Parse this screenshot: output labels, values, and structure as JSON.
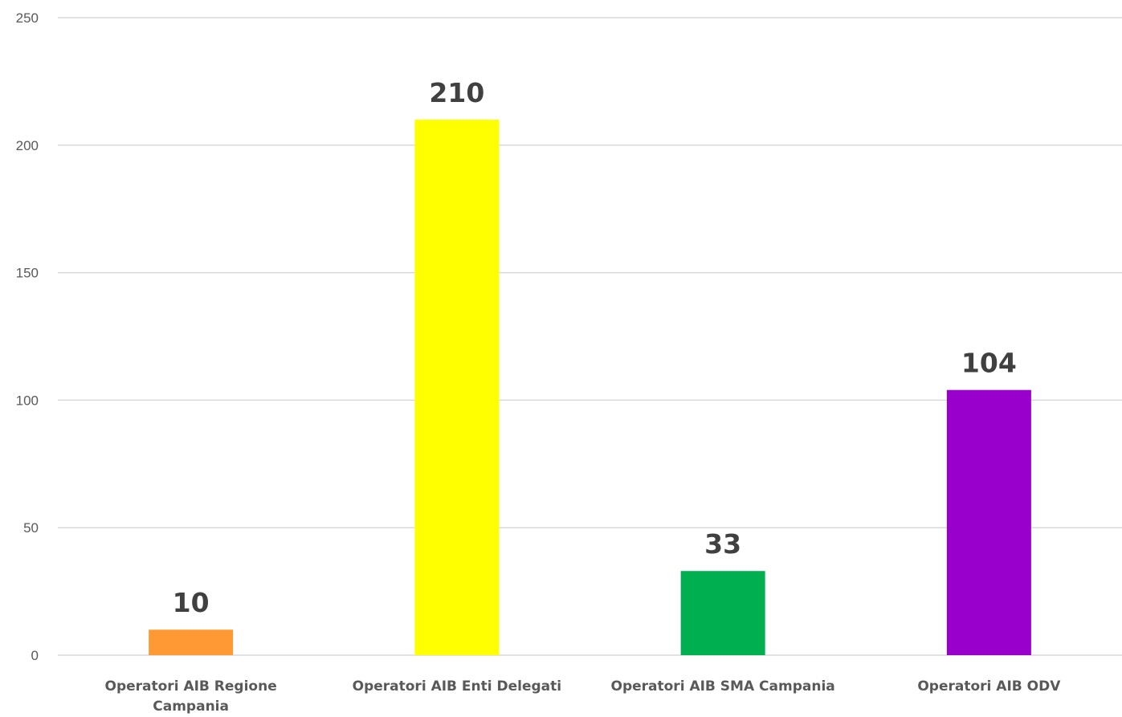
{
  "chart_data": {
    "type": "bar",
    "categories": [
      [
        "Operatori AIB Regione",
        "Campania"
      ],
      [
        "Operatori AIB Enti Delegati"
      ],
      [
        "Operatori AIB SMA Campania"
      ],
      [
        "Operatori AIB ODV"
      ]
    ],
    "values": [
      10,
      210,
      33,
      104
    ],
    "data_labels": [
      "10",
      "210",
      "33",
      "104"
    ],
    "colors": [
      "#ff9933",
      "#ffff00",
      "#00b050",
      "#9900cc"
    ],
    "y_ticks": [
      0,
      50,
      100,
      150,
      200,
      250
    ],
    "ylim": [
      0,
      250
    ],
    "grid": true,
    "legend": "none"
  }
}
